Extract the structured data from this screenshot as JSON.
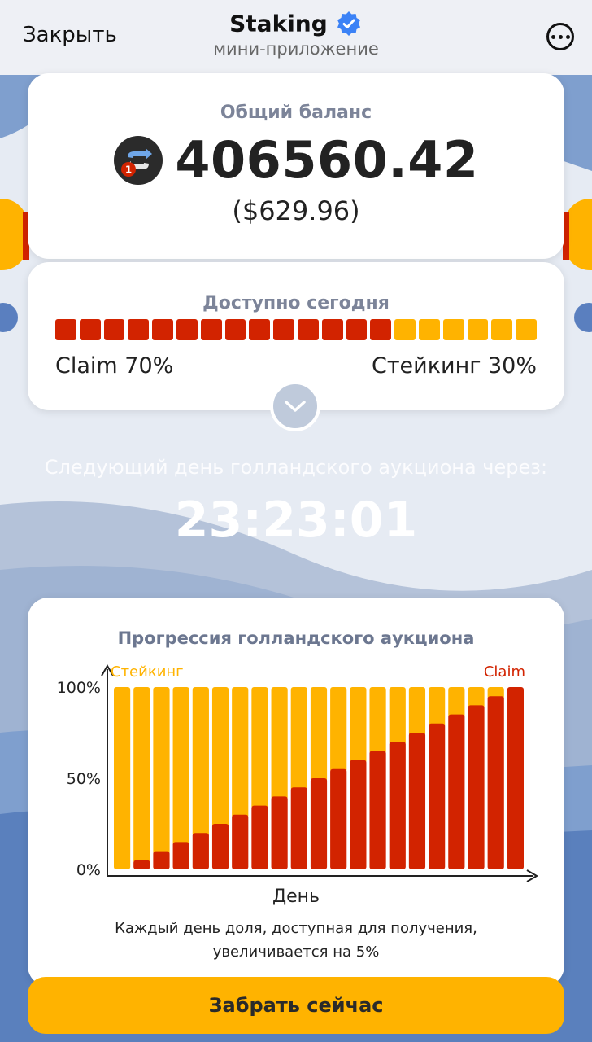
{
  "header": {
    "close_label": "Закрыть",
    "title": "Staking",
    "subtitle": "мини-приложение",
    "verified_icon": "verified-badge-icon",
    "more_icon": "more-options-icon"
  },
  "balance": {
    "label": "Общий баланс",
    "amount": "406560.42",
    "usd": "($629.96)",
    "coin_badge": "1",
    "coin_icon": "token-logo-icon"
  },
  "available": {
    "label": "Доступно сегодня",
    "claim_text": "Claim 70%",
    "staking_text": "Стейкинг 30%",
    "claim_fraction": 0.7,
    "segments": 20
  },
  "countdown": {
    "label": "Следующий день голландского аукциона через:",
    "time": "23:23:01"
  },
  "auction": {
    "title": "Прогрессия голландского аукциона",
    "note_line1": "Каждый день доля, доступная для получения,",
    "note_line2": "увеличивается на 5%"
  },
  "chart_data": {
    "type": "bar",
    "stacked": true,
    "xlabel": "День",
    "ylabel": "",
    "ylim": [
      0,
      100
    ],
    "ytick_labels": [
      "0%",
      "50%",
      "100%"
    ],
    "legend": [
      "Стейкинг",
      "Claim"
    ],
    "legend_placement": "top-left / top-right",
    "categories": [
      "",
      "",
      "",
      "",
      "",
      "",
      "",
      "",
      "",
      "",
      "",
      "",
      "",
      "",
      "",
      "",
      "",
      "",
      "",
      "",
      ""
    ],
    "series": [
      {
        "name": "Стейкинг",
        "values": [
          100,
          95,
          90,
          85,
          80,
          75,
          70,
          65,
          60,
          55,
          50,
          45,
          40,
          35,
          30,
          25,
          20,
          15,
          10,
          5,
          0
        ]
      },
      {
        "name": "Claim",
        "values": [
          0,
          5,
          10,
          15,
          20,
          25,
          30,
          35,
          40,
          45,
          50,
          55,
          60,
          65,
          70,
          75,
          80,
          85,
          90,
          95,
          100
        ]
      }
    ]
  },
  "colors": {
    "claim": "#d22300",
    "staking": "#ffb300",
    "accent_blue": "#3b82f6"
  },
  "cta": {
    "label": "Забрать сейчас"
  }
}
